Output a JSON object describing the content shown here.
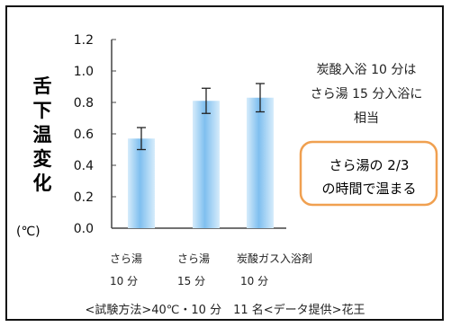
{
  "chart_data": {
    "type": "bar",
    "ylabel_chars": [
      "舌",
      "下",
      "温",
      "変",
      "化"
    ],
    "ylabel_unit": "(℃)",
    "ylim": [
      0.0,
      1.2
    ],
    "yticks": [
      "0.0",
      "0.2",
      "0.4",
      "0.6",
      "0.8",
      "1.0",
      "1.2"
    ],
    "categories": [
      {
        "line1": "さら湯",
        "line2": "10 分"
      },
      {
        "line1": "さら湯",
        "line2": "15 分"
      },
      {
        "line1": "炭酸ガス入浴剤",
        "line2": "10 分"
      }
    ],
    "values": [
      0.57,
      0.81,
      0.83
    ],
    "errors": [
      0.07,
      0.08,
      0.09
    ],
    "bar_color": "#7fbfef",
    "annotation": [
      "炭酸入浴 10 分は",
      "さら湯 15 分入浴に",
      "相当"
    ],
    "callout": [
      "さら湯の 2/3",
      "の時間で温まる"
    ],
    "callout_border_color": "#f0a050",
    "footnote": "<試験方法>40℃・10 分　11 名<データ提供>花王"
  }
}
